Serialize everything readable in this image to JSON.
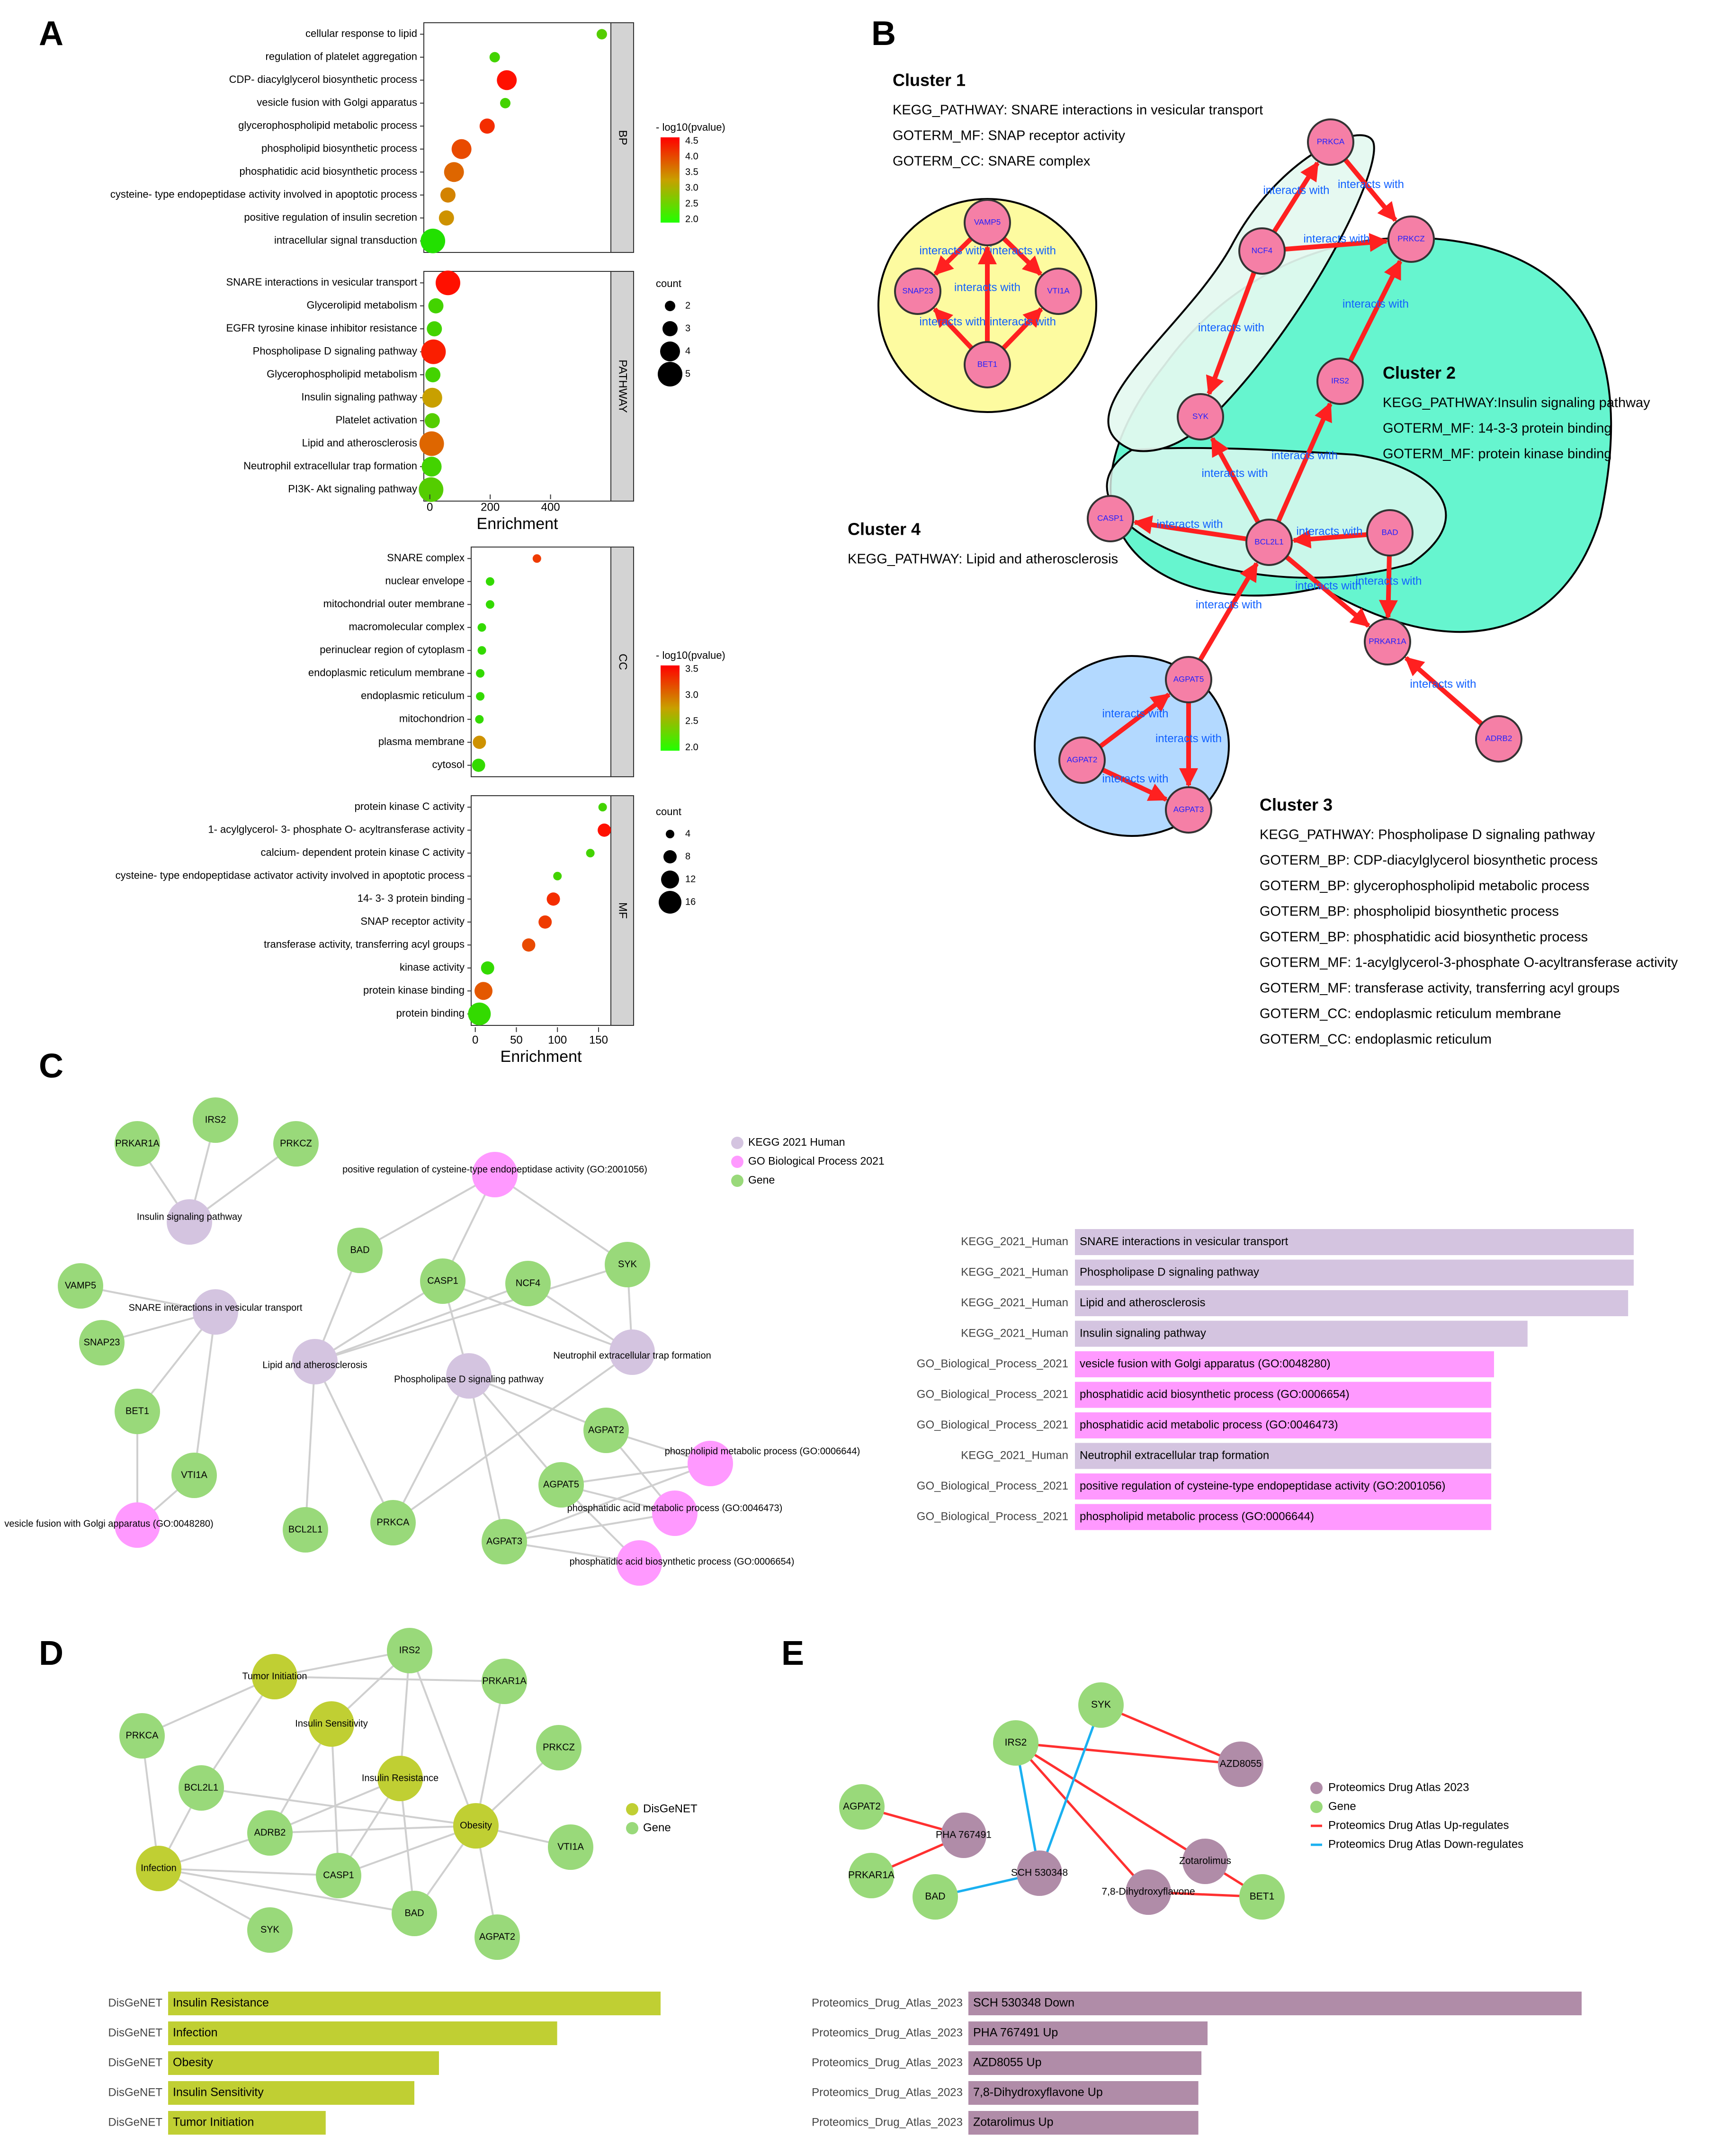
{
  "panels": {
    "a": "A",
    "b": "B",
    "c": "C",
    "d": "D",
    "e": "E"
  },
  "colors": {
    "high": "#ff0000",
    "mid": "#c8a000",
    "low": "#22e000",
    "strip": "#d3d3d3",
    "kegg": "#d4c4e0",
    "go": "#ff99ff",
    "gene": "#99d97a",
    "disgenet": "#c0cf33",
    "drug": "#b08ca8",
    "cluster1_fill": "#fdfba0",
    "cluster2_fill": "#66f5cf",
    "cluster3_fill": "#b3d9ff",
    "cluster4_fill": "#e4f8f0",
    "node_fill": "#f57fa6",
    "edge_red": "#ff2020",
    "edge_blue": "#20b0ff",
    "label_blue": "#1060ff"
  },
  "panel_a": {
    "xlabel": "Enrichment",
    "legend_pval_title": "- log10(pvalue)",
    "legend_count_title": "count",
    "top": {
      "x_ticks": [
        0,
        200,
        400
      ],
      "xlim": [
        -20,
        600
      ],
      "groups": [
        {
          "strip": "BP",
          "terms": [
            {
              "label": "cellular response to lipid",
              "x": 570,
              "c": 0.15,
              "s": 1
            },
            {
              "label": "regulation of platelet aggregation",
              "x": 215,
              "c": 0.1,
              "s": 1
            },
            {
              "label": "CDP- diacylglycerol biosynthetic process",
              "x": 255,
              "c": 1.0,
              "s": 3
            },
            {
              "label": "vesicle fusion with Golgi apparatus",
              "x": 250,
              "c": 0.1,
              "s": 1
            },
            {
              "label": "glycerophospholipid metabolic process",
              "x": 190,
              "c": 0.9,
              "s": 2
            },
            {
              "label": "phospholipid biosynthetic process",
              "x": 105,
              "c": 0.8,
              "s": 3
            },
            {
              "label": "phosphatidic acid biosynthetic process",
              "x": 80,
              "c": 0.7,
              "s": 3
            },
            {
              "label": "cysteine- type endopeptidase activity involved in apoptotic process",
              "x": 60,
              "c": 0.6,
              "s": 2
            },
            {
              "label": "positive regulation of insulin secretion",
              "x": 55,
              "c": 0.55,
              "s": 2
            },
            {
              "label": "intracellular signal transduction",
              "x": 10,
              "c": 0.0,
              "s": 4
            }
          ]
        },
        {
          "strip": "PATHWAY",
          "terms": [
            {
              "label": "SNARE interactions in vesicular transport",
              "x": 60,
              "c": 1.0,
              "s": 4
            },
            {
              "label": "Glycerolipid metabolism",
              "x": 20,
              "c": 0.1,
              "s": 2
            },
            {
              "label": "EGFR tyrosine kinase inhibitor resistance",
              "x": 15,
              "c": 0.1,
              "s": 2
            },
            {
              "label": "Phospholipase D signaling pathway",
              "x": 12,
              "c": 0.95,
              "s": 4
            },
            {
              "label": "Glycerophospholipid metabolism",
              "x": 10,
              "c": 0.1,
              "s": 2
            },
            {
              "label": "Insulin signaling pathway",
              "x": 8,
              "c": 0.5,
              "s": 3
            },
            {
              "label": "Platelet activation",
              "x": 8,
              "c": 0.15,
              "s": 2
            },
            {
              "label": "Lipid and atherosclerosis",
              "x": 6,
              "c": 0.7,
              "s": 4
            },
            {
              "label": "Neutrophil extracellular trap formation",
              "x": 6,
              "c": 0.1,
              "s": 3
            },
            {
              "label": "PI3K- Akt signaling pathway",
              "x": 4,
              "c": 0.15,
              "s": 4
            }
          ]
        }
      ],
      "legend_colors": [
        "4.5",
        "4.0",
        "3.5",
        "3.0",
        "2.5",
        "2.0"
      ],
      "legend_counts": [
        "2",
        "3",
        "4",
        "5"
      ]
    },
    "bottom": {
      "x_ticks": [
        0,
        50,
        100,
        150
      ],
      "xlim": [
        -5,
        165
      ],
      "groups": [
        {
          "strip": "CC",
          "terms": [
            {
              "label": "SNARE complex",
              "x": 75,
              "c": 0.85,
              "s": 1
            },
            {
              "label": "nuclear envelope",
              "x": 18,
              "c": 0.05,
              "s": 1
            },
            {
              "label": "mitochondrial outer membrane",
              "x": 18,
              "c": 0.05,
              "s": 1
            },
            {
              "label": "macromolecular complex",
              "x": 8,
              "c": 0.05,
              "s": 1
            },
            {
              "label": "perinuclear region of cytoplasm",
              "x": 8,
              "c": 0.05,
              "s": 1
            },
            {
              "label": "endoplasmic reticulum membrane",
              "x": 6,
              "c": 0.05,
              "s": 1
            },
            {
              "label": "endoplasmic reticulum",
              "x": 6,
              "c": 0.05,
              "s": 1
            },
            {
              "label": "mitochondrion",
              "x": 5,
              "c": 0.05,
              "s": 1
            },
            {
              "label": "plasma membrane",
              "x": 5,
              "c": 0.55,
              "s": 2
            },
            {
              "label": "cytosol",
              "x": 4,
              "c": 0.05,
              "s": 2
            }
          ]
        },
        {
          "strip": "MF",
          "terms": [
            {
              "label": "protein kinase C activity",
              "x": 155,
              "c": 0.1,
              "s": 1
            },
            {
              "label": "1- acylglycerol- 3- phosphate O- acyltransferase activity",
              "x": 157,
              "c": 1.0,
              "s": 2
            },
            {
              "label": "calcium- dependent protein kinase C activity",
              "x": 140,
              "c": 0.1,
              "s": 1
            },
            {
              "label": "cysteine- type endopeptidase activator activity involved in apoptotic process",
              "x": 100,
              "c": 0.1,
              "s": 1
            },
            {
              "label": "14- 3- 3 protein binding",
              "x": 95,
              "c": 0.9,
              "s": 2
            },
            {
              "label": "SNAP receptor activity",
              "x": 85,
              "c": 0.85,
              "s": 2
            },
            {
              "label": "transferase activity, transferring acyl groups",
              "x": 65,
              "c": 0.8,
              "s": 2
            },
            {
              "label": "kinase activity",
              "x": 15,
              "c": 0.05,
              "s": 2
            },
            {
              "label": "protein kinase binding",
              "x": 10,
              "c": 0.75,
              "s": 3
            },
            {
              "label": "protein binding",
              "x": 5,
              "c": 0.05,
              "s": 4
            }
          ]
        }
      ],
      "legend_colors": [
        "3.5",
        "3.0",
        "2.5",
        "2.0"
      ],
      "legend_counts": [
        "4",
        "8",
        "12",
        "16"
      ]
    }
  },
  "panel_b": {
    "edge_label": "interacts with",
    "clusters": [
      {
        "title": "Cluster 1",
        "lines": [
          "KEGG_PATHWAY: SNARE interactions in vesicular transport",
          "GOTERM_MF: SNAP receptor activity",
          "GOTERM_CC: SNARE complex"
        ]
      },
      {
        "title": "Cluster 2",
        "lines": [
          "KEGG_PATHWAY:Insulin signaling pathway",
          "GOTERM_MF: 14-3-3 protein binding",
          "GOTERM_MF: protein kinase binding"
        ]
      },
      {
        "title": "Cluster 3",
        "lines": [
          "KEGG_PATHWAY: Phospholipase D signaling pathway",
          "GOTERM_BP: CDP-diacylglycerol biosynthetic process",
          "GOTERM_BP: glycerophospholipid metabolic process",
          "GOTERM_BP: phospholipid biosynthetic process",
          "GOTERM_BP: phosphatidic acid biosynthetic process",
          "GOTERM_MF: 1-acylglycerol-3-phosphate O-acyltransferase activity",
          "GOTERM_MF: transferase activity, transferring acyl groups",
          "GOTERM_CC: endoplasmic reticulum membrane",
          "GOTERM_CC: endoplasmic reticulum"
        ]
      },
      {
        "title": "Cluster 4",
        "lines": [
          "KEGG_PATHWAY: Lipid and atherosclerosis"
        ]
      }
    ],
    "nodes": [
      "VAMP5",
      "SNAP23",
      "VTI1A",
      "BET1",
      "PRKCA",
      "NCF4",
      "PRKCZ",
      "IRS2",
      "SYK",
      "CASP1",
      "BCL2L1",
      "BAD",
      "PRKAR1A",
      "AGPAT5",
      "AGPAT2",
      "AGPAT3",
      "ADRB2"
    ]
  },
  "panel_c": {
    "legend": [
      "KEGG 2021 Human",
      "GO Biological Process 2021",
      "Gene"
    ],
    "genes": [
      "PRKAR1A",
      "IRS2",
      "PRKCZ",
      "VAMP5",
      "SNAP23",
      "BET1",
      "VTI1A",
      "BAD",
      "CASP1",
      "NCF4",
      "SYK",
      "BCL2L1",
      "PRKCA",
      "AGPAT2",
      "AGPAT5",
      "AGPAT3"
    ],
    "terms": [
      "Insulin signaling pathway",
      "SNARE interactions in vesicular transport",
      "Lipid and atherosclerosis",
      "Phospholipase D signaling pathway",
      "Neutrophil extracellular trap formation",
      "positive regulation of cysteine-type endopeptidase activity (GO:2001056)",
      "vesicle fusion with Golgi apparatus (GO:0048280)",
      "phospholipid metabolic process (GO:0006644)",
      "phosphatidic acid metabolic process (GO:0046473)",
      "phosphatidic acid biosynthetic process (GO:0006654)"
    ],
    "bars": [
      {
        "lib": "KEGG_2021_Human",
        "term": "SNARE interactions in vesicular transport",
        "value": 1.0,
        "kind": "kegg"
      },
      {
        "lib": "KEGG_2021_Human",
        "term": "Phospholipase D signaling pathway",
        "value": 1.0,
        "kind": "kegg"
      },
      {
        "lib": "KEGG_2021_Human",
        "term": "Lipid and atherosclerosis",
        "value": 0.99,
        "kind": "kegg"
      },
      {
        "lib": "KEGG_2021_Human",
        "term": "Insulin signaling pathway",
        "value": 0.81,
        "kind": "kegg"
      },
      {
        "lib": "GO_Biological_Process_2021",
        "term": "vesicle fusion with Golgi apparatus (GO:0048280)",
        "value": 0.75,
        "kind": "go"
      },
      {
        "lib": "GO_Biological_Process_2021",
        "term": "phosphatidic acid biosynthetic process (GO:0006654)",
        "value": 0.745,
        "kind": "go"
      },
      {
        "lib": "GO_Biological_Process_2021",
        "term": "phosphatidic acid metabolic process (GO:0046473)",
        "value": 0.745,
        "kind": "go"
      },
      {
        "lib": "KEGG_2021_Human",
        "term": "Neutrophil extracellular trap formation",
        "value": 0.745,
        "kind": "kegg"
      },
      {
        "lib": "GO_Biological_Process_2021",
        "term": "positive regulation of cysteine-type endopeptidase activity (GO:2001056)",
        "value": 0.745,
        "kind": "go"
      },
      {
        "lib": "GO_Biological_Process_2021",
        "term": "phospholipid metabolic process (GO:0006644)",
        "value": 0.745,
        "kind": "go"
      }
    ]
  },
  "panel_d": {
    "legend": [
      "DisGeNET",
      "Gene"
    ],
    "genes": [
      "IRS2",
      "PRKAR1A",
      "PRKCA",
      "PRKCZ",
      "BCL2L1",
      "ADRB2",
      "VTI1A",
      "CASP1",
      "BAD",
      "SYK",
      "AGPAT2"
    ],
    "diseases": [
      "Tumor Initiation",
      "Insulin Sensitivity",
      "Insulin Resistance",
      "Obesity",
      "Infection"
    ],
    "bars": [
      {
        "lib": "DisGeNET",
        "term": "Insulin Resistance",
        "value": 1.0
      },
      {
        "lib": "DisGeNET",
        "term": "Infection",
        "value": 0.79
      },
      {
        "lib": "DisGeNET",
        "term": "Obesity",
        "value": 0.55
      },
      {
        "lib": "DisGeNET",
        "term": "Insulin Sensitivity",
        "value": 0.5
      },
      {
        "lib": "DisGeNET",
        "term": "Tumor Initiation",
        "value": 0.32
      }
    ]
  },
  "panel_e": {
    "legend": [
      "Proteomics Drug Atlas 2023",
      "Gene",
      "Proteomics Drug Atlas Up-regulates",
      "Proteomics Drug Atlas Down-regulates"
    ],
    "genes": [
      "SYK",
      "IRS2",
      "AGPAT2",
      "PRKAR1A",
      "BAD",
      "BET1"
    ],
    "drugs": [
      "AZD8055",
      "PHA 767491",
      "Zotarolimus",
      "SCH 530348",
      "7,8-Dihydroxyflavone"
    ],
    "bars": [
      {
        "lib": "Proteomics_Drug_Atlas_2023",
        "term": "SCH 530348 Down",
        "value": 1.0
      },
      {
        "lib": "Proteomics_Drug_Atlas_2023",
        "term": "PHA 767491 Up",
        "value": 0.39
      },
      {
        "lib": "Proteomics_Drug_Atlas_2023",
        "term": "AZD8055 Up",
        "value": 0.38
      },
      {
        "lib": "Proteomics_Drug_Atlas_2023",
        "term": "7,8-Dihydroxyflavone Up",
        "value": 0.375
      },
      {
        "lib": "Proteomics_Drug_Atlas_2023",
        "term": "Zotarolimus Up",
        "value": 0.375
      }
    ]
  },
  "chart_data": [
    {
      "type": "scatter",
      "title": "A: BP / PATHWAY dot plot",
      "xlabel": "Enrichment",
      "ylabel": "",
      "xlim": [
        0,
        600
      ],
      "size_legend": "count",
      "color_legend": "- log10(pvalue)",
      "categories_bp": [
        "cellular response to lipid",
        "regulation of platelet aggregation",
        "CDP- diacylglycerol biosynthetic process",
        "vesicle fusion with Golgi apparatus",
        "glycerophospholipid metabolic process",
        "phospholipid biosynthetic process",
        "phosphatidic acid biosynthetic process",
        "cysteine- type endopeptidase activity involved in apoptotic process",
        "positive regulation of insulin secretion",
        "intracellular signal transduction"
      ],
      "values_bp": [
        570,
        215,
        255,
        250,
        190,
        105,
        80,
        60,
        55,
        10
      ],
      "categories_pathway": [
        "SNARE interactions in vesicular transport",
        "Glycerolipid metabolism",
        "EGFR tyrosine kinase inhibitor resistance",
        "Phospholipase D signaling pathway",
        "Glycerophospholipid metabolism",
        "Insulin signaling pathway",
        "Platelet activation",
        "Lipid and atherosclerosis",
        "Neutrophil extracellular trap formation",
        "PI3K- Akt signaling pathway"
      ],
      "values_pathway": [
        60,
        20,
        15,
        12,
        10,
        8,
        8,
        6,
        6,
        4
      ]
    },
    {
      "type": "scatter",
      "title": "A: CC / MF dot plot",
      "xlabel": "Enrichment",
      "ylabel": "",
      "xlim": [
        0,
        160
      ],
      "size_legend": "count",
      "color_legend": "- log10(pvalue)",
      "categories_cc": [
        "SNARE complex",
        "nuclear envelope",
        "mitochondrial outer membrane",
        "macromolecular complex",
        "perinuclear region of cytoplasm",
        "endoplasmic reticulum membrane",
        "endoplasmic reticulum",
        "mitochondrion",
        "plasma membrane",
        "cytosol"
      ],
      "values_cc": [
        75,
        18,
        18,
        8,
        8,
        6,
        6,
        5,
        5,
        4
      ],
      "categories_mf": [
        "protein kinase C activity",
        "1- acylglycerol- 3- phosphate O- acyltransferase activity",
        "calcium- dependent protein kinase C activity",
        "cysteine- type endopeptidase activator activity involved in apoptotic process",
        "14- 3- 3 protein binding",
        "SNAP receptor activity",
        "transferase activity, transferring acyl groups",
        "kinase activity",
        "protein kinase binding",
        "protein binding"
      ],
      "values_mf": [
        155,
        157,
        140,
        100,
        95,
        85,
        65,
        15,
        10,
        5
      ]
    },
    {
      "type": "bar",
      "title": "C: KEGG / GO enrichment bars",
      "categories": [
        "SNARE interactions in vesicular transport",
        "Phospholipase D signaling pathway",
        "Lipid and atherosclerosis",
        "Insulin signaling pathway",
        "vesicle fusion with Golgi apparatus (GO:0048280)",
        "phosphatidic acid biosynthetic process (GO:0006654)",
        "phosphatidic acid metabolic process (GO:0046473)",
        "Neutrophil extracellular trap formation",
        "positive regulation of cysteine-type endopeptidase activity (GO:2001056)",
        "phospholipid metabolic process (GO:0006644)"
      ],
      "values": [
        1.0,
        1.0,
        0.99,
        0.81,
        0.75,
        0.745,
        0.745,
        0.745,
        0.745,
        0.745
      ]
    },
    {
      "type": "bar",
      "title": "D: DisGeNET bars",
      "categories": [
        "Insulin Resistance",
        "Infection",
        "Obesity",
        "Insulin Sensitivity",
        "Tumor Initiation"
      ],
      "values": [
        1.0,
        0.79,
        0.55,
        0.5,
        0.32
      ]
    },
    {
      "type": "bar",
      "title": "E: Proteomics Drug Atlas bars",
      "categories": [
        "SCH 530348 Down",
        "PHA 767491 Up",
        "AZD8055 Up",
        "7,8-Dihydroxyflavone Up",
        "Zotarolimus Up"
      ],
      "values": [
        1.0,
        0.39,
        0.38,
        0.375,
        0.375
      ]
    }
  ]
}
